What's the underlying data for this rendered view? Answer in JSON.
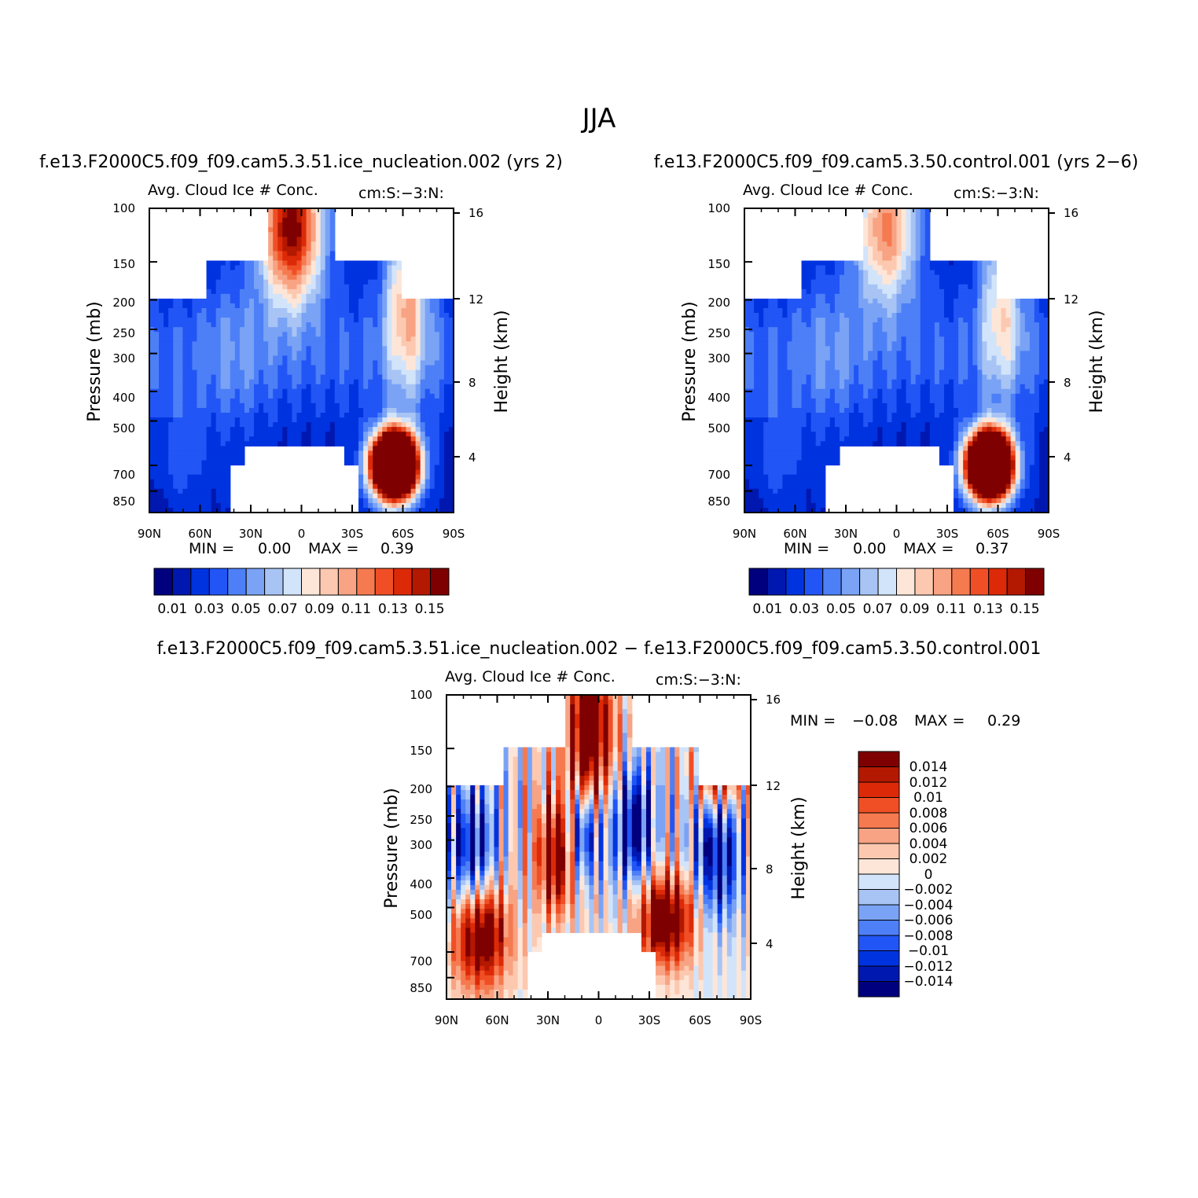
{
  "page_title": "JJA",
  "colors": {
    "pos_panel_colors": [
      "#00007f",
      "#0018b0",
      "#0033e0",
      "#2255f5",
      "#4d7ff7",
      "#7aa3f5",
      "#a8c4f5",
      "#d2e4fa",
      "#fde6d8",
      "#fcc9b0",
      "#f8a383",
      "#f57a50",
      "#f04f25",
      "#dc2a08",
      "#b31800",
      "#7f0000"
    ],
    "diff_colors": [
      "#00007f",
      "#0018b0",
      "#0033e0",
      "#2255f5",
      "#4d7ff7",
      "#7aa3f5",
      "#a8c4f5",
      "#d2e4fa",
      "#fde6d8",
      "#fcc9b0",
      "#f8a383",
      "#f57a50",
      "#f04f25",
      "#dc2a08",
      "#b31800",
      "#7f0000"
    ]
  },
  "chart_data": [
    {
      "type": "heatmap",
      "panel_id": "p1",
      "title": "f.e13.F2000C5.f09_f09.cam5.3.51.ice_nucleation.002 (yrs 2)",
      "left_label": "Avg. Cloud Ice # Conc.",
      "right_label": "cm:S:−3:N:",
      "ylabel": "Pressure (mb)",
      "ylabel_right": "Height (km)",
      "x_ticks": [
        "90N",
        "60N",
        "30N",
        "0",
        "30S",
        "60S",
        "90S"
      ],
      "y_ticks": [
        "100",
        "150",
        "200",
        "250",
        "300",
        "400",
        "500",
        "700",
        "850"
      ],
      "y_ticks_right": [
        "16",
        "12",
        "8",
        "4"
      ],
      "xlim": [
        90,
        -90
      ],
      "ylim": [
        100,
        1000
      ],
      "min_label": "MIN =",
      "min_value": "0.00",
      "max_label": "MAX =",
      "max_value": "0.39",
      "colorbar_labels": [
        "0.01",
        "0.03",
        "0.05",
        "0.07",
        "0.09",
        "0.11",
        "0.13",
        "0.15"
      ],
      "levels": [
        0.01,
        0.02,
        0.03,
        0.04,
        0.05,
        0.06,
        0.07,
        0.08,
        0.09,
        0.1,
        0.11,
        0.12,
        0.13,
        0.14,
        0.15
      ]
    },
    {
      "type": "heatmap",
      "panel_id": "p2",
      "title": "f.e13.F2000C5.f09_f09.cam5.3.50.control.001 (yrs 2−6)",
      "left_label": "Avg. Cloud Ice # Conc.",
      "right_label": "cm:S:−3:N:",
      "ylabel": "Pressure (mb)",
      "ylabel_right": "Height (km)",
      "x_ticks": [
        "90N",
        "60N",
        "30N",
        "0",
        "30S",
        "60S",
        "90S"
      ],
      "y_ticks": [
        "100",
        "150",
        "200",
        "250",
        "300",
        "400",
        "500",
        "700",
        "850"
      ],
      "y_ticks_right": [
        "16",
        "12",
        "8",
        "4"
      ],
      "xlim": [
        90,
        -90
      ],
      "ylim": [
        100,
        1000
      ],
      "min_label": "MIN =",
      "min_value": "0.00",
      "max_label": "MAX =",
      "max_value": "0.37",
      "colorbar_labels": [
        "0.01",
        "0.03",
        "0.05",
        "0.07",
        "0.09",
        "0.11",
        "0.13",
        "0.15"
      ],
      "levels": [
        0.01,
        0.02,
        0.03,
        0.04,
        0.05,
        0.06,
        0.07,
        0.08,
        0.09,
        0.1,
        0.11,
        0.12,
        0.13,
        0.14,
        0.15
      ]
    },
    {
      "type": "heatmap",
      "panel_id": "p3",
      "title": "f.e13.F2000C5.f09_f09.cam5.3.51.ice_nucleation.002 − f.e13.F2000C5.f09_f09.cam5.3.50.control.001",
      "left_label": "Avg. Cloud Ice # Conc.",
      "right_label": "cm:S:−3:N:",
      "ylabel": "Pressure (mb)",
      "ylabel_right": "Height (km)",
      "x_ticks": [
        "90N",
        "60N",
        "30N",
        "0",
        "30S",
        "60S",
        "90S"
      ],
      "y_ticks": [
        "100",
        "150",
        "200",
        "250",
        "300",
        "400",
        "500",
        "700",
        "850"
      ],
      "y_ticks_right": [
        "16",
        "12",
        "8",
        "4"
      ],
      "xlim": [
        90,
        -90
      ],
      "ylim": [
        100,
        1000
      ],
      "min_label": "MIN =",
      "min_value": "−0.08",
      "max_label": "MAX =",
      "max_value": "0.29",
      "colorbar_labels": [
        "0.014",
        "0.012",
        "0.01",
        "0.008",
        "0.006",
        "0.004",
        "0.002",
        "0",
        "−0.002",
        "−0.004",
        "−0.006",
        "−0.008",
        "−0.01",
        "−0.012",
        "−0.014"
      ],
      "levels": [
        -0.014,
        -0.012,
        -0.01,
        -0.008,
        -0.006,
        -0.004,
        -0.002,
        0,
        0.002,
        0.004,
        0.006,
        0.008,
        0.01,
        0.012,
        0.014
      ]
    }
  ]
}
